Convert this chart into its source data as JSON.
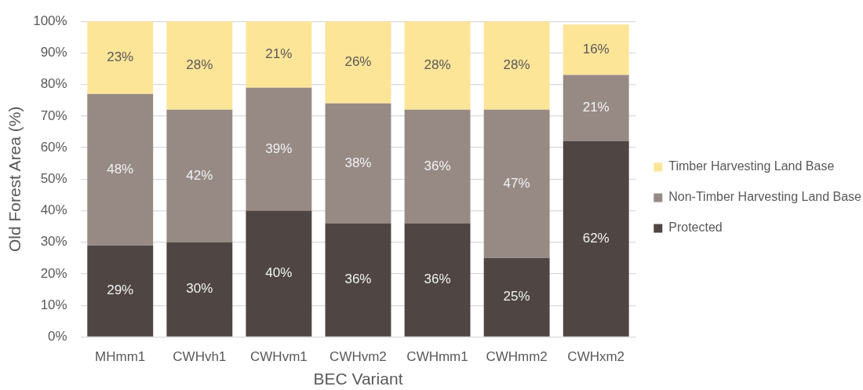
{
  "chart_data": {
    "type": "bar",
    "stacked": true,
    "xlabel": "BEC Variant",
    "ylabel": "Old Forest Area (%)",
    "categories": [
      "MHmm1",
      "CWHvh1",
      "CWHvm1",
      "CWHvm2",
      "CWHmm1",
      "CWHmm2",
      "CWHxm2"
    ],
    "series": [
      {
        "name": "Protected",
        "color": "#4f4542",
        "values": [
          29,
          30,
          40,
          36,
          36,
          25,
          62
        ],
        "value_labels": [
          "29%",
          "30%",
          "40%",
          "36%",
          "36%",
          "25%",
          "62%"
        ]
      },
      {
        "name": "Non-Timber Harvesting Land Base",
        "color": "#978a84",
        "values": [
          48,
          42,
          39,
          38,
          36,
          47,
          21
        ],
        "value_labels": [
          "48%",
          "42%",
          "39%",
          "38%",
          "36%",
          "47%",
          "21%"
        ]
      },
      {
        "name": "Timber Harvesting Land Base",
        "color": "#fde598",
        "values": [
          23,
          28,
          21,
          26,
          28,
          28,
          16
        ],
        "value_labels": [
          "23%",
          "28%",
          "21%",
          "26%",
          "28%",
          "28%",
          "16%"
        ]
      }
    ],
    "ylim": [
      0,
      100
    ],
    "yticks": [
      {
        "value": 0,
        "label": "0%"
      },
      {
        "value": 10,
        "label": "10%"
      },
      {
        "value": 20,
        "label": "20%"
      },
      {
        "value": 30,
        "label": "30%"
      },
      {
        "value": 40,
        "label": "40%"
      },
      {
        "value": 50,
        "label": "50%"
      },
      {
        "value": 60,
        "label": "60%"
      },
      {
        "value": 70,
        "label": "70%"
      },
      {
        "value": 80,
        "label": "80%"
      },
      {
        "value": 90,
        "label": "90%"
      },
      {
        "value": 100,
        "label": "100%"
      }
    ],
    "grid": "y",
    "legend": "right"
  }
}
